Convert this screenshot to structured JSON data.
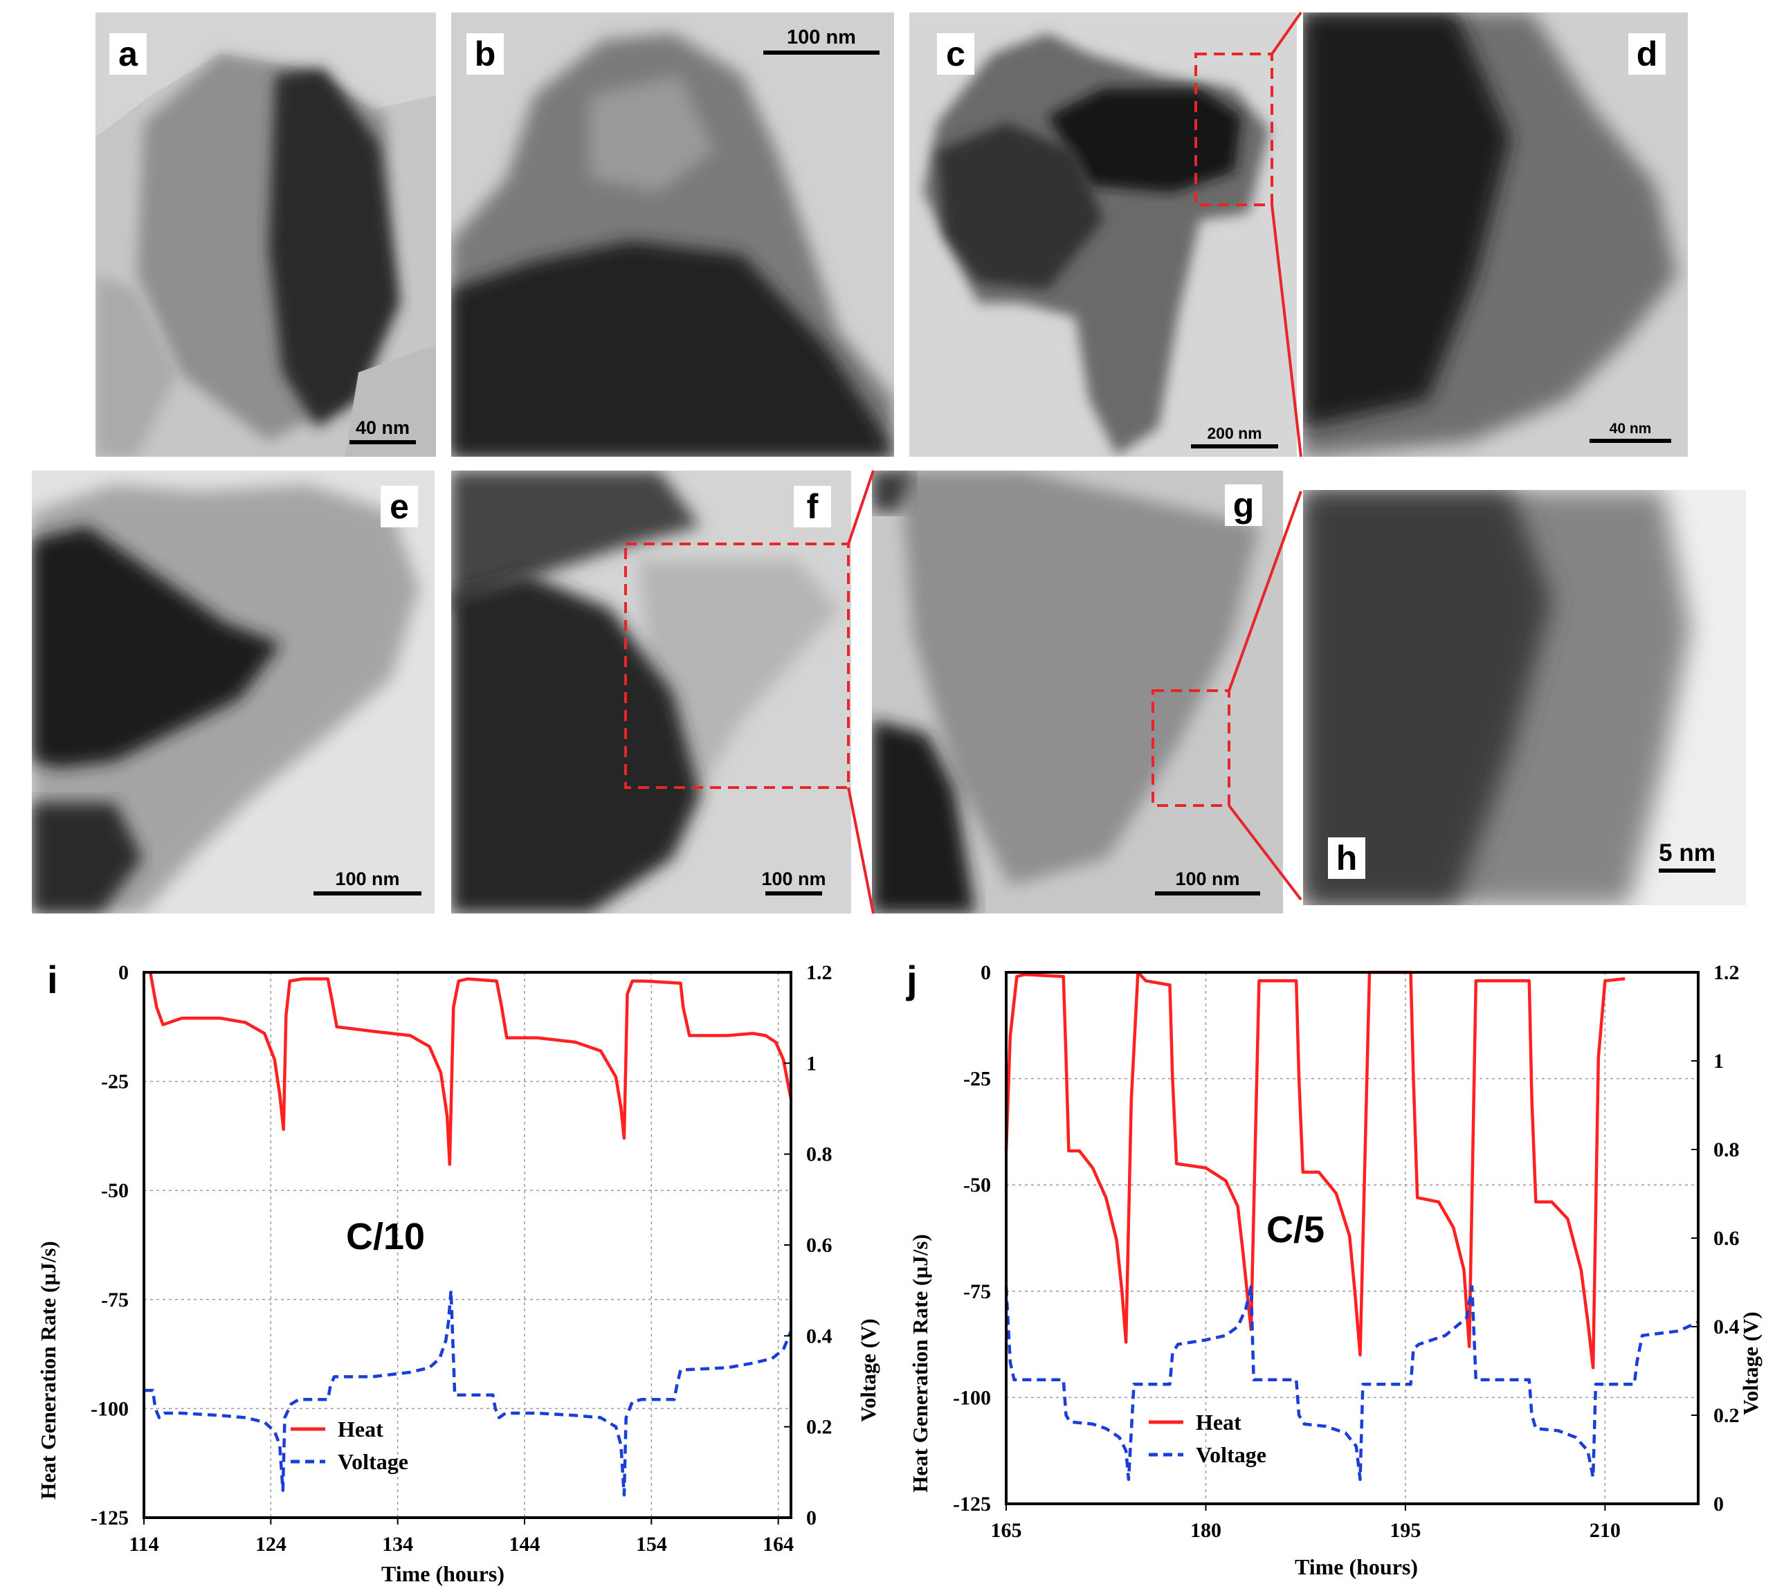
{
  "figure": {
    "panels": [
      {
        "id": "a",
        "label": "a",
        "scale_bar": "40 nm"
      },
      {
        "id": "b",
        "label": "b",
        "scale_bar": "100 nm"
      },
      {
        "id": "c",
        "label": "c",
        "scale_bar": "200 nm"
      },
      {
        "id": "d",
        "label": "d",
        "scale_bar": "40 nm"
      },
      {
        "id": "e",
        "label": "e",
        "scale_bar": "100 nm"
      },
      {
        "id": "f",
        "label": "f",
        "scale_bar": "100 nm"
      },
      {
        "id": "g",
        "label": "g",
        "scale_bar": "100 nm"
      },
      {
        "id": "h",
        "label": "h",
        "scale_bar": "5 nm"
      }
    ],
    "accent_colors": {
      "inset_box": "#e8262a",
      "heat": "#ff2020",
      "voltage": "#1c3ed8"
    }
  },
  "chart_data": [
    {
      "id": "i",
      "panel_label": "i",
      "type": "line",
      "annotation": "C/10",
      "xlabel": "Time (hours)",
      "ylabel": "Heat Generation Rate (µJ/s)",
      "y2label": "Voltage (V)",
      "xlim": [
        114,
        165
      ],
      "ylim": [
        -125,
        0
      ],
      "y2lim": [
        0,
        1.2
      ],
      "xticks": [
        114,
        124,
        134,
        144,
        154,
        164
      ],
      "yticks": [
        0,
        -25,
        -50,
        -75,
        -100,
        -125
      ],
      "y2ticks": [
        0,
        0.2,
        0.4,
        0.6,
        0.8,
        1,
        1.2
      ],
      "grid": true,
      "legend_position": "bottom-center",
      "series": [
        {
          "name": "Heat",
          "axis": "left",
          "x": [
            114.5,
            115.0,
            115.5,
            117,
            120,
            122,
            123.5,
            124.3,
            124.7,
            125.0,
            125.2,
            125.5,
            126.5,
            128.5,
            128.8,
            129.2,
            132,
            135,
            136.5,
            137.4,
            137.9,
            138.1,
            138.4,
            138.8,
            139.5,
            141.8,
            142.2,
            142.6,
            145,
            148,
            150,
            151.2,
            151.6,
            151.85,
            152.1,
            152.5,
            153.5,
            156.3,
            156.5,
            157,
            160,
            162,
            163,
            163.8,
            164.4,
            165
          ],
          "y": [
            0,
            -8,
            -12,
            -10.5,
            -10.5,
            -11.5,
            -14,
            -20,
            -28,
            -36,
            -10,
            -2,
            -1.5,
            -1.5,
            -6,
            -12.5,
            -13.5,
            -14.5,
            -17,
            -23,
            -33,
            -44,
            -8,
            -2,
            -1.5,
            -2,
            -8,
            -15,
            -15,
            -16,
            -18,
            -24,
            -31,
            -38,
            -5,
            -2,
            -2,
            -2.5,
            -8,
            -14.5,
            -14.5,
            -14,
            -14.5,
            -16,
            -20,
            -29
          ]
        },
        {
          "name": "Voltage",
          "axis": "right",
          "x": [
            114,
            114.7,
            114.9,
            115.2,
            115.6,
            117,
            120,
            122,
            123.5,
            124.3,
            124.7,
            124.95,
            125.1,
            125.6,
            126.2,
            128.5,
            128.7,
            129.0,
            132,
            135,
            136.5,
            137.3,
            137.8,
            138.0,
            138.2,
            138.5,
            141.5,
            141.7,
            142.0,
            142.5,
            145,
            148,
            150,
            151.2,
            151.6,
            151.85,
            152.0,
            152.5,
            153.2,
            155.8,
            156.0,
            156.3,
            160,
            162,
            163.5,
            164.4,
            165
          ],
          "y": [
            0.28,
            0.28,
            0.24,
            0.22,
            0.23,
            0.23,
            0.225,
            0.22,
            0.21,
            0.19,
            0.16,
            0.06,
            0.22,
            0.25,
            0.26,
            0.26,
            0.29,
            0.31,
            0.31,
            0.32,
            0.33,
            0.35,
            0.39,
            0.43,
            0.5,
            0.27,
            0.27,
            0.24,
            0.22,
            0.23,
            0.23,
            0.225,
            0.22,
            0.2,
            0.16,
            0.05,
            0.22,
            0.255,
            0.26,
            0.26,
            0.29,
            0.325,
            0.33,
            0.34,
            0.35,
            0.37,
            0.41
          ]
        }
      ]
    },
    {
      "id": "j",
      "panel_label": "j",
      "type": "line",
      "annotation": "C/5",
      "xlabel": "Time (hours)",
      "ylabel": "Heat Generation Rate (µJ/s)",
      "y2label": "Voltage (V)",
      "xlim": [
        165,
        217
      ],
      "ylim": [
        -125,
        0
      ],
      "y2lim": [
        0,
        1.2
      ],
      "xticks": [
        165,
        180,
        195,
        210
      ],
      "yticks": [
        0,
        -25,
        -50,
        -75,
        -100,
        -125
      ],
      "y2ticks": [
        0,
        0.2,
        0.4,
        0.6,
        0.8,
        1,
        1.2
      ],
      "grid": true,
      "legend_position": "bottom-center",
      "series": [
        {
          "name": "Heat",
          "axis": "left",
          "x": [
            165,
            165.3,
            165.8,
            166.4,
            169.3,
            169.5,
            169.7,
            170.5,
            171.5,
            172.5,
            173.3,
            173.7,
            174.0,
            174.4,
            174.9,
            175.5,
            177.3,
            177.5,
            177.8,
            180,
            181.5,
            182.4,
            182.8,
            183.4,
            184,
            186.8,
            187.0,
            187.3,
            188.5,
            189.8,
            190.8,
            191.2,
            191.6,
            192.3,
            195.4,
            195.6,
            195.9,
            197.5,
            198.6,
            199.4,
            199.8,
            200.3,
            200.8,
            204.3,
            204.5,
            204.8,
            206,
            207.2,
            208.2,
            208.7,
            209.1,
            209.5,
            210.0,
            211.5
          ],
          "y": [
            -42,
            -15,
            -1,
            -0.5,
            -1,
            -20,
            -42,
            -42,
            -46,
            -53,
            -63,
            -75,
            -87,
            -30,
            0,
            -2,
            -3,
            -25,
            -45,
            -46,
            -49,
            -55,
            -66,
            -84,
            -2,
            -2,
            -25,
            -47,
            -47,
            -52,
            -62,
            -75,
            -90,
            0,
            0,
            -25,
            -53,
            -54,
            -60,
            -70,
            -88,
            -2,
            -2,
            -2,
            -30,
            -54,
            -54,
            -58,
            -70,
            -82,
            -93,
            -20,
            -2,
            -1.5
          ]
        },
        {
          "name": "Voltage",
          "axis": "right",
          "x": [
            165,
            165.3,
            165.6,
            169.3,
            169.5,
            169.8,
            171.5,
            172.5,
            173.5,
            174.0,
            174.2,
            174.6,
            177.3,
            177.5,
            177.9,
            180,
            181.5,
            182.4,
            183.0,
            183.4,
            183.6,
            186.8,
            187.0,
            187.4,
            189,
            190.5,
            191.3,
            191.6,
            191.8,
            195.4,
            195.6,
            196,
            198,
            199.6,
            200.0,
            200.3,
            204.3,
            204.5,
            204.8,
            206.5,
            207.8,
            208.7,
            209.1,
            209.3,
            212.2,
            212.4,
            212.8,
            215.5,
            217
          ],
          "y": [
            0.49,
            0.32,
            0.28,
            0.28,
            0.2,
            0.185,
            0.18,
            0.17,
            0.15,
            0.12,
            0.055,
            0.27,
            0.27,
            0.34,
            0.36,
            0.37,
            0.38,
            0.4,
            0.44,
            0.49,
            0.28,
            0.28,
            0.2,
            0.18,
            0.175,
            0.16,
            0.13,
            0.055,
            0.27,
            0.27,
            0.35,
            0.36,
            0.38,
            0.42,
            0.49,
            0.28,
            0.28,
            0.2,
            0.17,
            0.165,
            0.15,
            0.12,
            0.06,
            0.27,
            0.27,
            0.32,
            0.38,
            0.39,
            0.41
          ]
        }
      ]
    }
  ]
}
